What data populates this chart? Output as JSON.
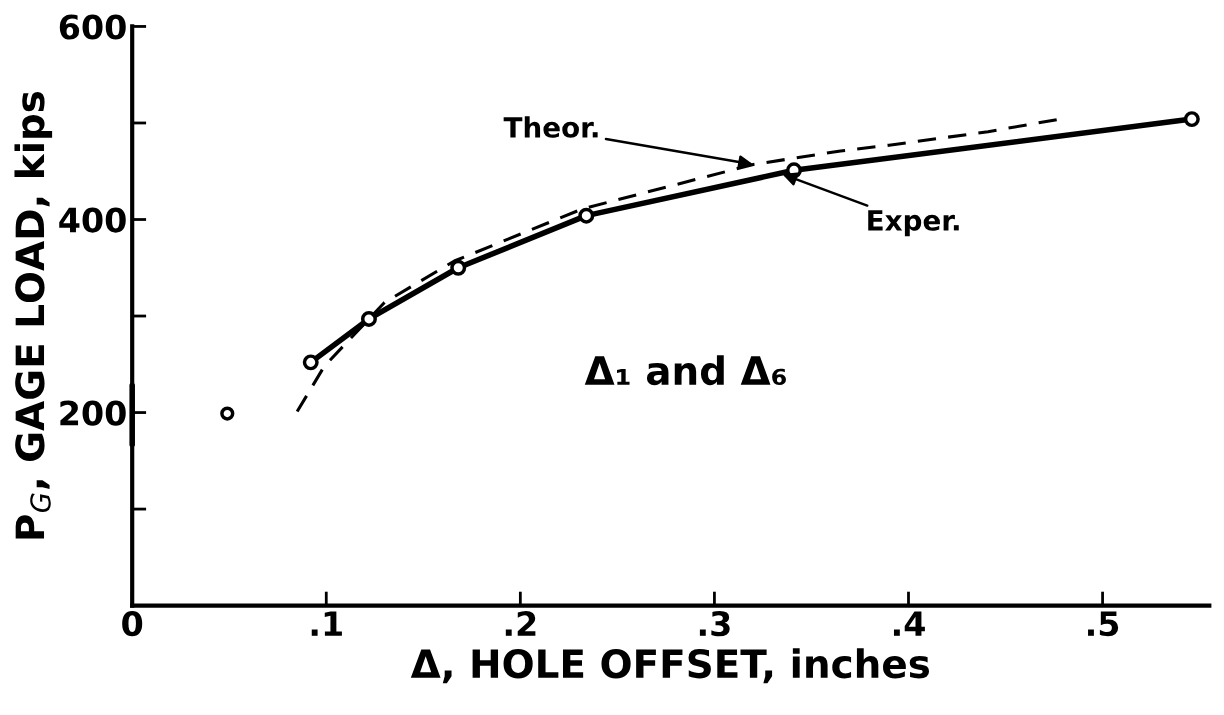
{
  "chart_data": {
    "type": "line",
    "xlabel": "Δ, HOLE OFFSET, inches",
    "ylabel": "P$_{G}$, GAGE LOAD, kips",
    "xlim": [
      0,
      0.555
    ],
    "ylim": [
      0,
      600
    ],
    "xticks": [
      {
        "value": 0,
        "label": "0"
      },
      {
        "value": 0.1,
        "label": ".1"
      },
      {
        "value": 0.2,
        "label": ".2"
      },
      {
        "value": 0.3,
        "label": ".3"
      },
      {
        "value": 0.4,
        "label": ".4"
      },
      {
        "value": 0.5,
        "label": ".5"
      }
    ],
    "yticks": [
      {
        "value": 100,
        "label": null
      },
      200,
      {
        "value": 300,
        "label": null
      },
      400,
      {
        "value": 500,
        "label": null
      },
      600
    ],
    "grid": false,
    "legend": false,
    "series": [
      {
        "color": "#000000",
        "line_style": "solid",
        "marker": "circle",
        "x": [
          0.092,
          0.122,
          0.168,
          0.234,
          0.341,
          0.546
        ],
        "values": [
          252,
          297,
          350,
          404,
          451,
          504
        ]
      },
      {
        "color": "#000000",
        "line_style": "dashed",
        "marker": "none",
        "x": [
          0.085,
          0.099,
          0.13,
          0.166,
          0.232,
          0.32,
          0.365,
          0.39,
          0.441,
          0.478
        ],
        "values": [
          201,
          248,
          314,
          357,
          411,
          457,
          471,
          477,
          491,
          504
        ]
      },
      {
        "type": "scatter",
        "color": "#000000",
        "marker": "circle",
        "x": [
          0.049
        ],
        "values": [
          199
        ]
      },
      {
        "color": "#000000",
        "line_style": "solid",
        "marker": "none",
        "x": [
          0,
          0
        ],
        "values": [
          167,
          228
        ]
      }
    ],
    "annotations": [
      {
        "text": "Theor.",
        "x": 0.32,
        "y": 457
      },
      {
        "text": "Exper.",
        "x": 0.335,
        "y": 447
      },
      "Δ₁ and Δ₆"
    ]
  }
}
